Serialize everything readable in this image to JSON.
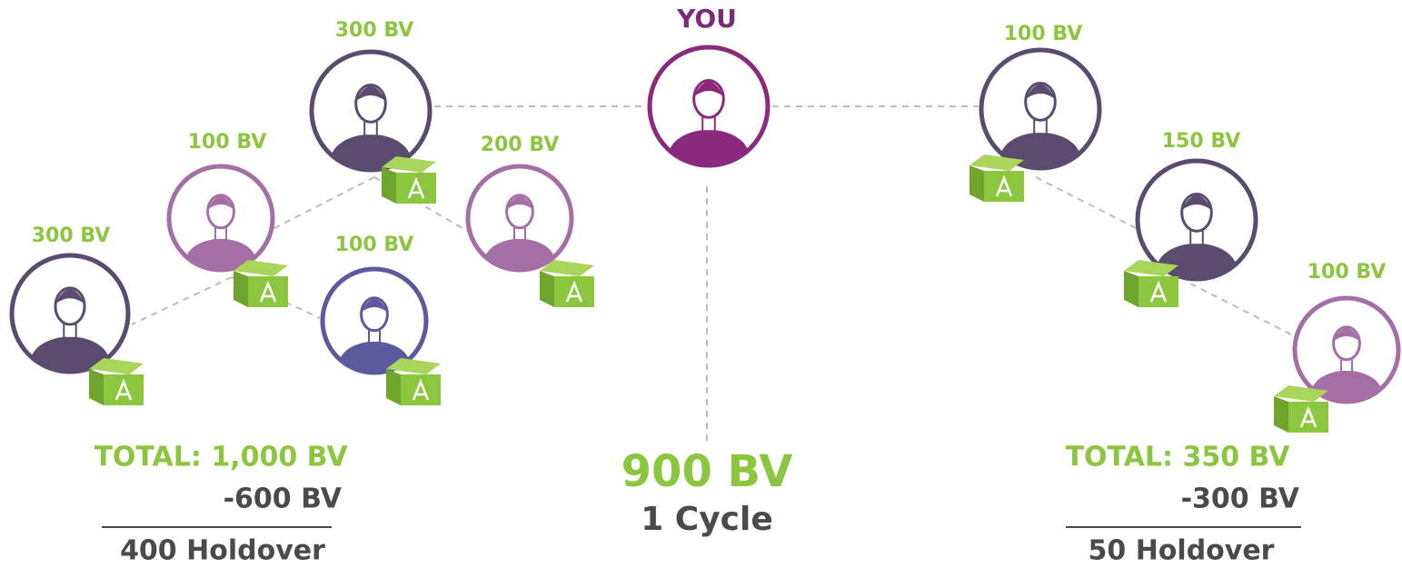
{
  "nodes": [
    {
      "label": "YOU"
    },
    {
      "label": "300 BV"
    },
    {
      "label": "100 BV"
    },
    {
      "label": "200 BV"
    },
    {
      "label": "300 BV"
    },
    {
      "label": "100 BV"
    },
    {
      "label": "100 BV"
    },
    {
      "label": "150 BV"
    },
    {
      "label": "100 BV"
    }
  ],
  "left_summary": {
    "total": "TOTAL: 1,000 BV",
    "deduction": "-600 BV",
    "result": "400 Holdover"
  },
  "center_summary": {
    "total": "900 BV",
    "result": "1 Cycle"
  },
  "right_summary": {
    "total": "TOTAL: 350 BV",
    "deduction": "-300 BV",
    "result": "50 Holdover"
  }
}
